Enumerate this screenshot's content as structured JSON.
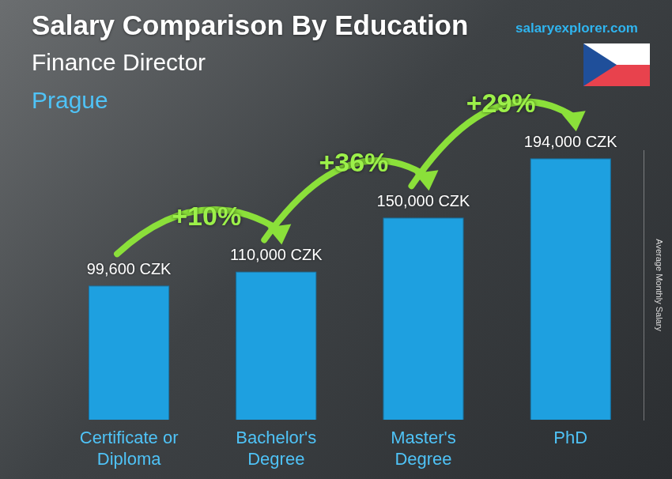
{
  "chart_data": {
    "type": "bar",
    "title": "Salary Comparison By Education",
    "subtitle": "Finance Director",
    "location": "Prague",
    "source": "salaryexplorer.com",
    "y_label": "Average Monthly Salary",
    "categories": [
      "Certificate or Diploma",
      "Bachelor's Degree",
      "Master's Degree",
      "PhD"
    ],
    "values": [
      99600,
      110000,
      150000,
      194000
    ],
    "value_labels": [
      "99,600 CZK",
      "110,000 CZK",
      "150,000 CZK",
      "194,000 CZK"
    ],
    "annotations": [
      "+10%",
      "+36%",
      "+29%"
    ],
    "color": "#1ea0e0",
    "ylim": [
      0,
      200000
    ],
    "grid": false,
    "tick_labels": "x",
    "data_labels": true
  }
}
